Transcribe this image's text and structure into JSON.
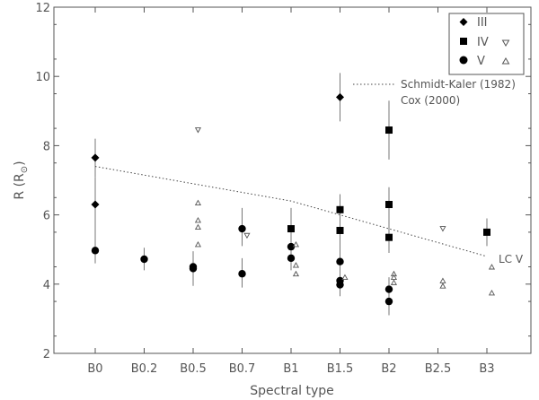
{
  "chart_data": {
    "type": "scatter",
    "xlabel": "Spectral type",
    "ylabel": "R (R",
    "ylabel_sub": "⊙",
    "ylabel_close": ")",
    "categories": [
      "B0",
      "B0.2",
      "B0.5",
      "B0.7",
      "B1",
      "B1.5",
      "B2",
      "B2.5",
      "B3"
    ],
    "ylim": [
      2,
      12
    ],
    "yticks": [
      2,
      4,
      6,
      8,
      10,
      12
    ],
    "grid": false,
    "legend_position": "top-right",
    "legend": [
      {
        "label": "III",
        "markers": [
          "diamond"
        ]
      },
      {
        "label": "IV",
        "markers": [
          "square",
          "tri-down"
        ]
      },
      {
        "label": "V",
        "markers": [
          "circle",
          "tri-up"
        ]
      }
    ],
    "series": [
      {
        "name": "III",
        "marker": "diamond",
        "points": [
          {
            "x": 0,
            "y": 7.65,
            "lo": 7.1,
            "hi": 8.2
          },
          {
            "x": 0,
            "y": 6.3,
            "lo": 4.9,
            "hi": 7.1
          },
          {
            "x": 5,
            "y": 9.4,
            "lo": 8.7,
            "hi": 10.1
          }
        ]
      },
      {
        "name": "IV",
        "marker": "square",
        "points": [
          {
            "x": 4,
            "y": 5.6,
            "lo": 5.0,
            "hi": 6.2
          },
          {
            "x": 5,
            "y": 6.15,
            "lo": 5.8,
            "hi": 6.6
          },
          {
            "x": 5,
            "y": 5.55,
            "lo": 4.9,
            "hi": 6.1
          },
          {
            "x": 6,
            "y": 8.45,
            "lo": 7.6,
            "hi": 9.3
          },
          {
            "x": 6,
            "y": 6.3,
            "lo": 5.8,
            "hi": 6.8
          },
          {
            "x": 6,
            "y": 5.35,
            "lo": 4.9,
            "hi": 5.9
          },
          {
            "x": 8,
            "y": 5.5,
            "lo": 5.1,
            "hi": 5.9
          }
        ]
      },
      {
        "name": "IV",
        "marker": "tri-down",
        "points": [
          {
            "x": 2.1,
            "y": 8.45
          },
          {
            "x": 3.1,
            "y": 5.4
          },
          {
            "x": 7.1,
            "y": 5.6
          }
        ]
      },
      {
        "name": "V",
        "marker": "circle",
        "points": [
          {
            "x": 0,
            "y": 4.97,
            "lo": 4.6,
            "hi": 5.3
          },
          {
            "x": 1,
            "y": 4.72,
            "lo": 4.4,
            "hi": 5.05
          },
          {
            "x": 2,
            "y": 4.5,
            "lo": 4.1,
            "hi": 4.95
          },
          {
            "x": 2,
            "y": 4.45,
            "lo": 3.95,
            "hi": 4.85
          },
          {
            "x": 3,
            "y": 5.6,
            "lo": 5.1,
            "hi": 6.2
          },
          {
            "x": 3,
            "y": 4.3,
            "lo": 3.9,
            "hi": 4.75
          },
          {
            "x": 4,
            "y": 5.08,
            "lo": 4.7,
            "hi": 5.5
          },
          {
            "x": 4,
            "y": 4.75,
            "lo": 4.4,
            "hi": 5.1
          },
          {
            "x": 5,
            "y": 4.65,
            "lo": 4.3,
            "hi": 5.05
          },
          {
            "x": 5,
            "y": 4.1,
            "lo": 3.8,
            "hi": 4.4
          },
          {
            "x": 5,
            "y": 3.98,
            "lo": 3.65,
            "hi": 4.3
          },
          {
            "x": 6,
            "y": 3.85,
            "lo": 3.5,
            "hi": 4.2
          },
          {
            "x": 6,
            "y": 3.5,
            "lo": 3.1,
            "hi": 3.9
          }
        ]
      },
      {
        "name": "V",
        "marker": "tri-up",
        "points": [
          {
            "x": 2.1,
            "y": 6.35
          },
          {
            "x": 2.1,
            "y": 5.85
          },
          {
            "x": 2.1,
            "y": 5.65
          },
          {
            "x": 2.1,
            "y": 5.15
          },
          {
            "x": 4.1,
            "y": 5.15
          },
          {
            "x": 4.1,
            "y": 4.55
          },
          {
            "x": 4.1,
            "y": 4.3
          },
          {
            "x": 5.1,
            "y": 4.2
          },
          {
            "x": 6.1,
            "y": 4.3
          },
          {
            "x": 6.1,
            "y": 4.2
          },
          {
            "x": 6.1,
            "y": 4.05
          },
          {
            "x": 7.1,
            "y": 4.1
          },
          {
            "x": 7.1,
            "y": 3.95
          },
          {
            "x": 8.1,
            "y": 4.5
          },
          {
            "x": 8.1,
            "y": 3.75
          }
        ]
      }
    ],
    "reference_lines": [
      {
        "label": "Schmidt-Kaler (1982)",
        "style": "dotted",
        "x": [
          0,
          4,
          8
        ],
        "y": [
          7.4,
          6.4,
          4.8
        ]
      }
    ],
    "annotations": [
      {
        "text": "Cox (2000)"
      },
      {
        "text": "LC V"
      }
    ]
  }
}
